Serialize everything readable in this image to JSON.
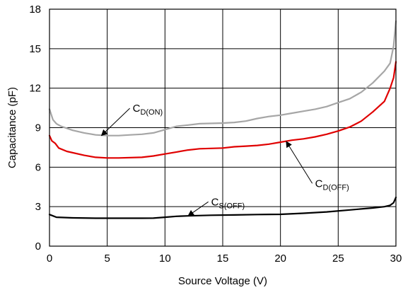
{
  "chart_data": {
    "type": "line",
    "title": "",
    "xlabel": "Source Voltage (V)",
    "ylabel": "Capacitance (pF)",
    "xlim": [
      0,
      30
    ],
    "ylim": [
      0,
      18
    ],
    "xticks": [
      0,
      5,
      10,
      15,
      20,
      25,
      30
    ],
    "yticks": [
      0,
      3,
      6,
      9,
      12,
      15,
      18
    ],
    "grid": true,
    "legend": "none",
    "series": [
      {
        "key": "cd_on",
        "color": "#a6a6a6",
        "label": {
          "main": "C",
          "sub": "D(ON)"
        },
        "points": [
          [
            0,
            10.4
          ],
          [
            0.3,
            9.6
          ],
          [
            0.6,
            9.3
          ],
          [
            1,
            9.1
          ],
          [
            2,
            8.8
          ],
          [
            3,
            8.6
          ],
          [
            4,
            8.45
          ],
          [
            5,
            8.4
          ],
          [
            6,
            8.4
          ],
          [
            7,
            8.45
          ],
          [
            8,
            8.5
          ],
          [
            9,
            8.6
          ],
          [
            10,
            8.85
          ],
          [
            11,
            9.1
          ],
          [
            12,
            9.2
          ],
          [
            13,
            9.3
          ],
          [
            15,
            9.35
          ],
          [
            16,
            9.4
          ],
          [
            17,
            9.5
          ],
          [
            18,
            9.7
          ],
          [
            19,
            9.85
          ],
          [
            20,
            9.95
          ],
          [
            21,
            10.1
          ],
          [
            22,
            10.25
          ],
          [
            23,
            10.4
          ],
          [
            24,
            10.6
          ],
          [
            25,
            10.9
          ],
          [
            26,
            11.2
          ],
          [
            27,
            11.7
          ],
          [
            28,
            12.4
          ],
          [
            29,
            13.3
          ],
          [
            29.5,
            13.9
          ],
          [
            29.8,
            15.2
          ],
          [
            30,
            17.1
          ]
        ]
      },
      {
        "key": "cd_off",
        "color": "#e00000",
        "label": {
          "main": "C",
          "sub": "D(OFF)"
        },
        "points": [
          [
            0,
            8.4
          ],
          [
            0.2,
            8.0
          ],
          [
            0.5,
            7.8
          ],
          [
            0.8,
            7.45
          ],
          [
            1.5,
            7.2
          ],
          [
            3,
            6.9
          ],
          [
            4,
            6.75
          ],
          [
            5,
            6.7
          ],
          [
            6,
            6.7
          ],
          [
            8,
            6.75
          ],
          [
            9,
            6.85
          ],
          [
            10,
            7.0
          ],
          [
            11,
            7.15
          ],
          [
            12,
            7.3
          ],
          [
            13,
            7.4
          ],
          [
            15,
            7.45
          ],
          [
            16,
            7.55
          ],
          [
            17,
            7.6
          ],
          [
            18,
            7.65
          ],
          [
            19,
            7.75
          ],
          [
            20,
            7.9
          ],
          [
            21,
            8.05
          ],
          [
            22,
            8.15
          ],
          [
            23,
            8.3
          ],
          [
            24,
            8.5
          ],
          [
            25,
            8.75
          ],
          [
            26,
            9.05
          ],
          [
            27,
            9.5
          ],
          [
            28,
            10.2
          ],
          [
            29,
            11.0
          ],
          [
            29.5,
            12.0
          ],
          [
            29.8,
            12.8
          ],
          [
            30,
            14.0
          ]
        ]
      },
      {
        "key": "cs_off",
        "color": "#000000",
        "label": {
          "main": "C",
          "sub": "S(OFF)"
        },
        "points": [
          [
            0,
            2.4
          ],
          [
            0.3,
            2.3
          ],
          [
            0.6,
            2.2
          ],
          [
            1,
            2.18
          ],
          [
            2,
            2.15
          ],
          [
            4,
            2.12
          ],
          [
            6,
            2.12
          ],
          [
            8,
            2.12
          ],
          [
            9,
            2.13
          ],
          [
            10,
            2.2
          ],
          [
            11,
            2.27
          ],
          [
            12,
            2.3
          ],
          [
            14,
            2.35
          ],
          [
            16,
            2.37
          ],
          [
            18,
            2.4
          ],
          [
            20,
            2.42
          ],
          [
            22,
            2.5
          ],
          [
            24,
            2.6
          ],
          [
            26,
            2.75
          ],
          [
            28,
            2.9
          ],
          [
            29,
            3.0
          ],
          [
            29.5,
            3.1
          ],
          [
            29.8,
            3.3
          ],
          [
            30,
            3.7
          ]
        ]
      }
    ],
    "annotations": [
      {
        "series": "cd_on",
        "text_x": 7.2,
        "text_y": 10.2,
        "arrow_to_x": 4.5,
        "arrow_to_y": 8.4
      },
      {
        "series": "cd_off",
        "text_x": 23,
        "text_y": 4.5,
        "arrow_to_x": 20.5,
        "arrow_to_y": 7.95
      },
      {
        "series": "cs_off",
        "text_x": 14,
        "text_y": 3.1,
        "arrow_to_x": 12,
        "arrow_to_y": 2.3
      }
    ]
  }
}
